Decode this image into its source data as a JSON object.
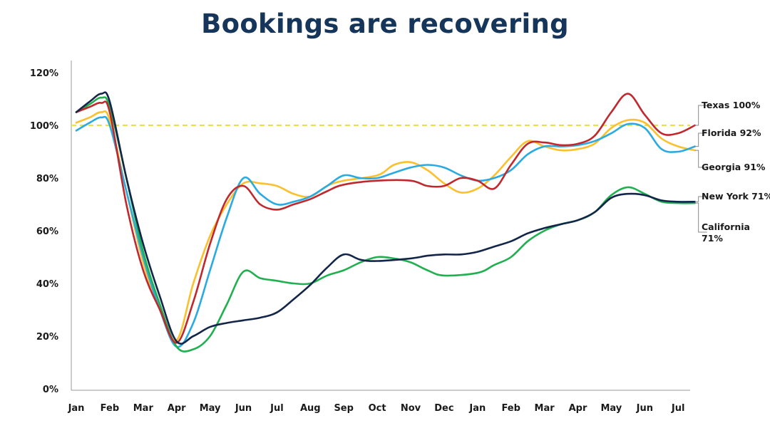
{
  "chart_data": {
    "type": "line",
    "title": "Bookings are recovering",
    "xlabel": "",
    "ylabel": "",
    "categories": [
      "Jan",
      "Feb",
      "Mar",
      "Apr",
      "May",
      "Jun",
      "Jul",
      "Aug",
      "Sep",
      "Oct",
      "Nov",
      "Dec",
      "Jan",
      "Feb",
      "Mar",
      "Apr",
      "May",
      "Jun",
      "Jul"
    ],
    "y_ticks": [
      "0%",
      "20%",
      "40%",
      "60%",
      "80%",
      "100%",
      "120%"
    ],
    "ylim": [
      0,
      120
    ],
    "reference_line": {
      "value": 100,
      "style": "dashed",
      "color": "#e6e24a"
    },
    "grid": false,
    "series": [
      {
        "name": "Texas 100%",
        "color": "#c0282d",
        "points": [
          [
            0,
            105
          ],
          [
            0.4,
            107
          ],
          [
            0.75,
            108.5
          ],
          [
            1.0,
            105
          ],
          [
            1.5,
            70
          ],
          [
            2,
            45
          ],
          [
            2.5,
            30
          ],
          [
            3,
            17.5
          ],
          [
            3.5,
            33
          ],
          [
            4,
            55
          ],
          [
            4.5,
            72
          ],
          [
            5,
            77
          ],
          [
            5.5,
            70
          ],
          [
            6,
            68
          ],
          [
            6.5,
            70
          ],
          [
            7,
            72
          ],
          [
            7.5,
            75
          ],
          [
            8,
            77.5
          ],
          [
            9,
            79
          ],
          [
            10,
            79
          ],
          [
            10.5,
            77
          ],
          [
            11,
            77
          ],
          [
            11.5,
            80
          ],
          [
            12,
            79
          ],
          [
            12.5,
            76
          ],
          [
            13,
            85
          ],
          [
            13.5,
            93
          ],
          [
            14,
            93.5
          ],
          [
            14.5,
            92.5
          ],
          [
            15,
            93
          ],
          [
            15.5,
            96
          ],
          [
            16,
            105
          ],
          [
            16.5,
            112
          ],
          [
            17,
            104
          ],
          [
            17.5,
            97
          ],
          [
            18,
            97
          ],
          [
            18.5,
            100
          ]
        ]
      },
      {
        "name": "Florida 92%",
        "color": "#29abe2",
        "points": [
          [
            0,
            98
          ],
          [
            0.4,
            101
          ],
          [
            0.75,
            103
          ],
          [
            1.0,
            100
          ],
          [
            1.5,
            75
          ],
          [
            2,
            50
          ],
          [
            2.5,
            30
          ],
          [
            3,
            16
          ],
          [
            3.5,
            25
          ],
          [
            4,
            45
          ],
          [
            4.5,
            65
          ],
          [
            5,
            80
          ],
          [
            5.5,
            74
          ],
          [
            6,
            70
          ],
          [
            6.5,
            71
          ],
          [
            7,
            73
          ],
          [
            7.5,
            77
          ],
          [
            8,
            81
          ],
          [
            8.5,
            80
          ],
          [
            9,
            80
          ],
          [
            9.5,
            82
          ],
          [
            10,
            84
          ],
          [
            10.5,
            85
          ],
          [
            11,
            84
          ],
          [
            11.5,
            81
          ],
          [
            12,
            79
          ],
          [
            12.5,
            80
          ],
          [
            13,
            83
          ],
          [
            13.5,
            89
          ],
          [
            14,
            92
          ],
          [
            14.5,
            92
          ],
          [
            15,
            92.5
          ],
          [
            15.5,
            94
          ],
          [
            16,
            97
          ],
          [
            16.5,
            100.5
          ],
          [
            17,
            99
          ],
          [
            17.5,
            91
          ],
          [
            18,
            90
          ],
          [
            18.5,
            92
          ]
        ]
      },
      {
        "name": "Georgia 91%",
        "color": "#fbc02d",
        "points": [
          [
            0,
            101
          ],
          [
            0.4,
            103
          ],
          [
            0.75,
            105
          ],
          [
            1.0,
            102
          ],
          [
            1.5,
            75
          ],
          [
            2,
            48
          ],
          [
            2.5,
            30
          ],
          [
            3,
            18.5
          ],
          [
            3.5,
            40
          ],
          [
            4,
            58
          ],
          [
            4.5,
            70
          ],
          [
            5,
            78
          ],
          [
            5.5,
            78
          ],
          [
            6,
            77
          ],
          [
            6.5,
            74
          ],
          [
            7,
            73
          ],
          [
            7.5,
            77
          ],
          [
            8,
            79
          ],
          [
            9,
            81
          ],
          [
            9.5,
            85
          ],
          [
            10,
            86
          ],
          [
            10.5,
            83
          ],
          [
            11,
            78
          ],
          [
            11.5,
            74.5
          ],
          [
            12,
            76
          ],
          [
            12.5,
            81
          ],
          [
            13,
            88
          ],
          [
            13.5,
            94
          ],
          [
            14,
            92
          ],
          [
            14.5,
            90.5
          ],
          [
            15,
            91
          ],
          [
            15.5,
            93
          ],
          [
            16,
            99
          ],
          [
            16.5,
            102
          ],
          [
            17,
            101
          ],
          [
            17.5,
            95
          ],
          [
            18,
            92
          ],
          [
            18.5,
            90.5
          ]
        ]
      },
      {
        "name": "New York 71%",
        "color": "#13264a",
        "points": [
          [
            0,
            105
          ],
          [
            0.4,
            109
          ],
          [
            0.75,
            112
          ],
          [
            1.0,
            109
          ],
          [
            1.5,
            80
          ],
          [
            2,
            55
          ],
          [
            2.5,
            35
          ],
          [
            3,
            18
          ],
          [
            3.5,
            20
          ],
          [
            4,
            23.5
          ],
          [
            4.5,
            25
          ],
          [
            5,
            26
          ],
          [
            5.5,
            27
          ],
          [
            6,
            29
          ],
          [
            6.5,
            34
          ],
          [
            7,
            39.5
          ],
          [
            7.5,
            46
          ],
          [
            8,
            51
          ],
          [
            8.5,
            49
          ],
          [
            9,
            48.5
          ],
          [
            10,
            49.5
          ],
          [
            10.5,
            50.5
          ],
          [
            11,
            51
          ],
          [
            11.5,
            51
          ],
          [
            12,
            52
          ],
          [
            12.5,
            54
          ],
          [
            13,
            56
          ],
          [
            13.5,
            59
          ],
          [
            14,
            61
          ],
          [
            14.5,
            62.5
          ],
          [
            15,
            64
          ],
          [
            15.5,
            67
          ],
          [
            16,
            72.5
          ],
          [
            16.5,
            74
          ],
          [
            17,
            73.5
          ],
          [
            17.5,
            71.5
          ],
          [
            18,
            71
          ],
          [
            18.5,
            71
          ]
        ]
      },
      {
        "name": "California 71%",
        "color": "#1fb04f",
        "points": [
          [
            0,
            105
          ],
          [
            0.4,
            108
          ],
          [
            0.75,
            110.5
          ],
          [
            1.0,
            107
          ],
          [
            1.5,
            80
          ],
          [
            2,
            52
          ],
          [
            2.5,
            32
          ],
          [
            3,
            16
          ],
          [
            3.5,
            15
          ],
          [
            4,
            20
          ],
          [
            4.5,
            32
          ],
          [
            5,
            44.5
          ],
          [
            5.5,
            42
          ],
          [
            6,
            41
          ],
          [
            6.5,
            40
          ],
          [
            7,
            40
          ],
          [
            7.5,
            43
          ],
          [
            8,
            45
          ],
          [
            8.5,
            48
          ],
          [
            9,
            50
          ],
          [
            9.5,
            49.5
          ],
          [
            10,
            48
          ],
          [
            10.5,
            45
          ],
          [
            11,
            43
          ],
          [
            12,
            44
          ],
          [
            12.5,
            47
          ],
          [
            13,
            50
          ],
          [
            13.5,
            56
          ],
          [
            14,
            60
          ],
          [
            14.5,
            62.5
          ],
          [
            15,
            64
          ],
          [
            15.5,
            67
          ],
          [
            16,
            73.5
          ],
          [
            16.5,
            76.5
          ],
          [
            17,
            74
          ],
          [
            17.5,
            71
          ],
          [
            18,
            70.5
          ],
          [
            18.5,
            70.5
          ]
        ]
      }
    ],
    "annotations": [
      {
        "lines": [
          "Texas 100%"
        ],
        "series": "Texas 100%"
      },
      {
        "lines": [
          "Florida 92%"
        ],
        "series": "Florida 92%"
      },
      {
        "lines": [
          "Georgia 91%"
        ],
        "series": "Georgia 91%"
      },
      {
        "lines": [
          "New York 71%"
        ],
        "series": "New York 71%"
      },
      {
        "lines": [
          "California",
          "71%"
        ],
        "series": "California 71%"
      }
    ]
  }
}
